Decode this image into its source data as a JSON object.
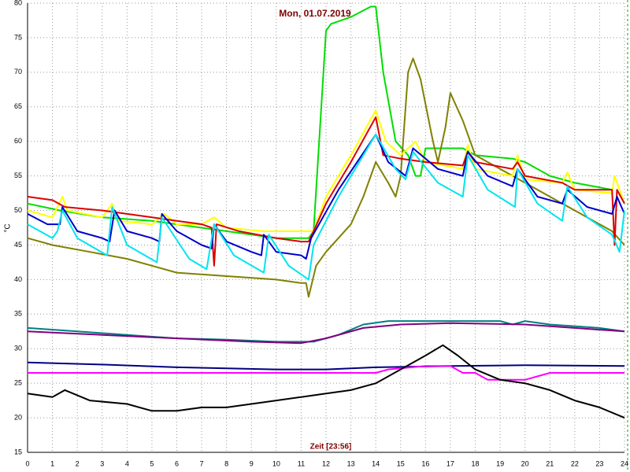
{
  "chart_data": {
    "type": "line",
    "title": "Mon, 01.07.2019",
    "x_label": "Zeit [23:56]",
    "y_label": "°C",
    "xlim": [
      0,
      24
    ],
    "ylim": [
      15,
      80
    ],
    "xticks": [
      0,
      1,
      2,
      3,
      4,
      5,
      6,
      7,
      8,
      9,
      10,
      11,
      12,
      13,
      14,
      15,
      16,
      17,
      18,
      19,
      20,
      21,
      22,
      23,
      24
    ],
    "yticks": [
      15,
      20,
      25,
      30,
      35,
      40,
      45,
      50,
      55,
      60,
      65,
      70,
      75,
      80
    ],
    "grid": true,
    "series": [
      {
        "color": "#00dd00",
        "x": [
          0,
          1.3,
          3,
          5,
          8,
          9,
          10,
          11.3,
          11.5,
          12,
          12.2,
          13,
          13.8,
          14,
          14.3,
          14.8,
          15.3,
          15.6,
          15.8,
          16,
          17.5,
          18,
          19.5,
          20,
          21,
          22,
          23.5
        ],
        "values": [
          51,
          50,
          49,
          48.5,
          47,
          46.5,
          46,
          46,
          47,
          76,
          77,
          78,
          79.5,
          79.5,
          70,
          60,
          58,
          55,
          55,
          59,
          59,
          58,
          57.5,
          57,
          55,
          54,
          53
        ]
      },
      {
        "color": "#808000",
        "x": [
          0,
          1,
          2.5,
          4,
          5,
          6,
          8,
          10,
          11,
          11.2,
          11.3,
          11.6,
          12,
          13,
          13.5,
          14,
          14.5,
          14.8,
          15,
          15.3,
          15.5,
          15.8,
          16.3,
          16.5,
          16.8,
          17,
          17.5,
          18,
          19,
          20,
          21,
          22,
          23,
          23.5,
          24
        ],
        "values": [
          46,
          45,
          44,
          43,
          42,
          41,
          40.5,
          40,
          39.5,
          39.5,
          37.5,
          42,
          44,
          48,
          52,
          57,
          54,
          52,
          55,
          70,
          72,
          69,
          60,
          57,
          62,
          67,
          63,
          58,
          56,
          54,
          52,
          50,
          48,
          47,
          45
        ]
      },
      {
        "color": "#ffff00",
        "x": [
          0,
          1,
          1.4,
          1.6,
          3,
          3.4,
          3.6,
          5,
          5.5,
          6,
          7,
          7.5,
          8,
          9.5,
          11,
          11.5,
          12,
          13,
          14,
          14.4,
          15,
          15.6,
          16,
          17.5,
          17.7,
          18,
          19.5,
          19.7,
          20,
          21.5,
          21.7,
          22,
          23.5,
          23.6,
          24
        ],
        "values": [
          50,
          49,
          52,
          50,
          49,
          51,
          48.5,
          48,
          49.5,
          48,
          48,
          49,
          47.5,
          47,
          47,
          47,
          52,
          58,
          64.5,
          60,
          58,
          60,
          57,
          56,
          59.5,
          56,
          55,
          58,
          54.5,
          54,
          55.5,
          53,
          52.5,
          55,
          51
        ]
      },
      {
        "color": "#dd0000",
        "x": [
          0,
          1,
          1.5,
          3,
          4,
          5,
          6,
          7,
          7.4,
          7.5,
          7.6,
          8.5,
          10,
          11,
          11.3,
          11.5,
          12,
          13,
          14,
          14.3,
          15,
          16,
          17.5,
          17.7,
          18,
          19.5,
          19.7,
          20,
          21.5,
          22,
          23.5,
          23.6,
          23.7,
          24
        ],
        "values": [
          52,
          51.5,
          50.5,
          50,
          49.5,
          49,
          48.5,
          48,
          47.5,
          42,
          48,
          47,
          46,
          45.5,
          45.5,
          47,
          51,
          57,
          63.5,
          58,
          57.5,
          57,
          56.5,
          58.5,
          57,
          56,
          57,
          55,
          54,
          53,
          53,
          45,
          53,
          51
        ]
      },
      {
        "color": "#0000cc",
        "x": [
          0,
          0.8,
          1.3,
          1.4,
          2,
          3,
          3.3,
          3.5,
          4,
          5,
          5.3,
          5.4,
          6,
          7,
          7.4,
          7.5,
          8,
          9,
          9.4,
          9.5,
          10,
          11,
          11.2,
          11.4,
          12.5,
          14,
          14.5,
          15.2,
          15.5,
          16.5,
          17.5,
          17.7,
          18.5,
          19.5,
          19.7,
          20.5,
          21.5,
          21.7,
          22.5,
          23.5,
          23.7,
          24
        ],
        "values": [
          49.5,
          48,
          48,
          50.5,
          47,
          46,
          45.5,
          50,
          47,
          46,
          45.5,
          49.5,
          47,
          45,
          44.5,
          48,
          45.5,
          44,
          43.5,
          46.5,
          44,
          43.5,
          43,
          46,
          53,
          61,
          57,
          55,
          59,
          56,
          55,
          58.5,
          55,
          53.5,
          56,
          52,
          51,
          53,
          50.5,
          49.5,
          52,
          49.5
        ]
      },
      {
        "color": "#00e5ee",
        "x": [
          0,
          0.5,
          1,
          1.2,
          1.4,
          2,
          3.2,
          3.4,
          4,
          5.2,
          5.4,
          6.5,
          7.2,
          7.5,
          8.3,
          9.5,
          9.7,
          10.5,
          11.3,
          11.5,
          12.5,
          14,
          14.8,
          15.2,
          15.5,
          16.5,
          17.5,
          17.7,
          18.5,
          19.6,
          19.7,
          20.5,
          21.5,
          21.7,
          22.5,
          23.5,
          23.8,
          24
        ],
        "values": [
          48,
          47,
          46,
          47,
          50,
          46,
          43.5,
          50.5,
          45,
          42.5,
          49,
          43,
          41.5,
          48,
          43.5,
          41,
          46.5,
          42,
          40,
          45,
          52,
          61,
          56,
          54.5,
          58.5,
          54,
          52,
          58,
          53,
          50.5,
          56,
          51,
          48.5,
          53.5,
          49,
          46.5,
          44,
          50
        ]
      },
      {
        "color": "#008080",
        "x": [
          0,
          2,
          4,
          6,
          8,
          10,
          11.5,
          12.5,
          13.5,
          14.5,
          17,
          19,
          19.5,
          20,
          21,
          23,
          24
        ],
        "values": [
          33,
          32.5,
          32,
          31.5,
          31.3,
          31,
          31,
          32,
          33.5,
          34,
          34,
          34,
          33.5,
          34,
          33.5,
          33,
          32.5
        ]
      },
      {
        "color": "#800080",
        "x": [
          0,
          3,
          6,
          9,
          11,
          12,
          13.5,
          15,
          17,
          20,
          22,
          24
        ],
        "values": [
          32.5,
          32,
          31.5,
          31,
          30.8,
          31.5,
          33,
          33.5,
          33.7,
          33.5,
          33,
          32.5
        ]
      },
      {
        "color": "#000080",
        "x": [
          0,
          3,
          6,
          10,
          12,
          14,
          17,
          20,
          24
        ],
        "values": [
          28,
          27.7,
          27.3,
          27,
          27,
          27.3,
          27.5,
          27.6,
          27.5
        ]
      },
      {
        "color": "#ff00ff",
        "x": [
          0,
          14,
          14.5,
          16,
          17,
          17.5,
          18,
          18.5,
          20,
          20.5,
          21,
          24
        ],
        "values": [
          26.5,
          26.5,
          27,
          27.5,
          27.5,
          26.5,
          26.5,
          25.5,
          25.5,
          26,
          26.5,
          26.5
        ]
      },
      {
        "color": "#000000",
        "x": [
          0,
          1,
          1.5,
          2.5,
          4,
          5,
          6,
          7,
          8,
          9,
          10,
          11,
          12,
          13,
          14,
          15,
          16,
          16.7,
          17.3,
          18,
          19,
          20,
          21,
          22,
          23,
          24
        ],
        "values": [
          23.5,
          23,
          24,
          22.5,
          22,
          21,
          21,
          21.5,
          21.5,
          22,
          22.5,
          23,
          23.5,
          24,
          25,
          27,
          29,
          30.5,
          29,
          27,
          25.5,
          25,
          24,
          22.5,
          21.5,
          20
        ]
      }
    ]
  }
}
